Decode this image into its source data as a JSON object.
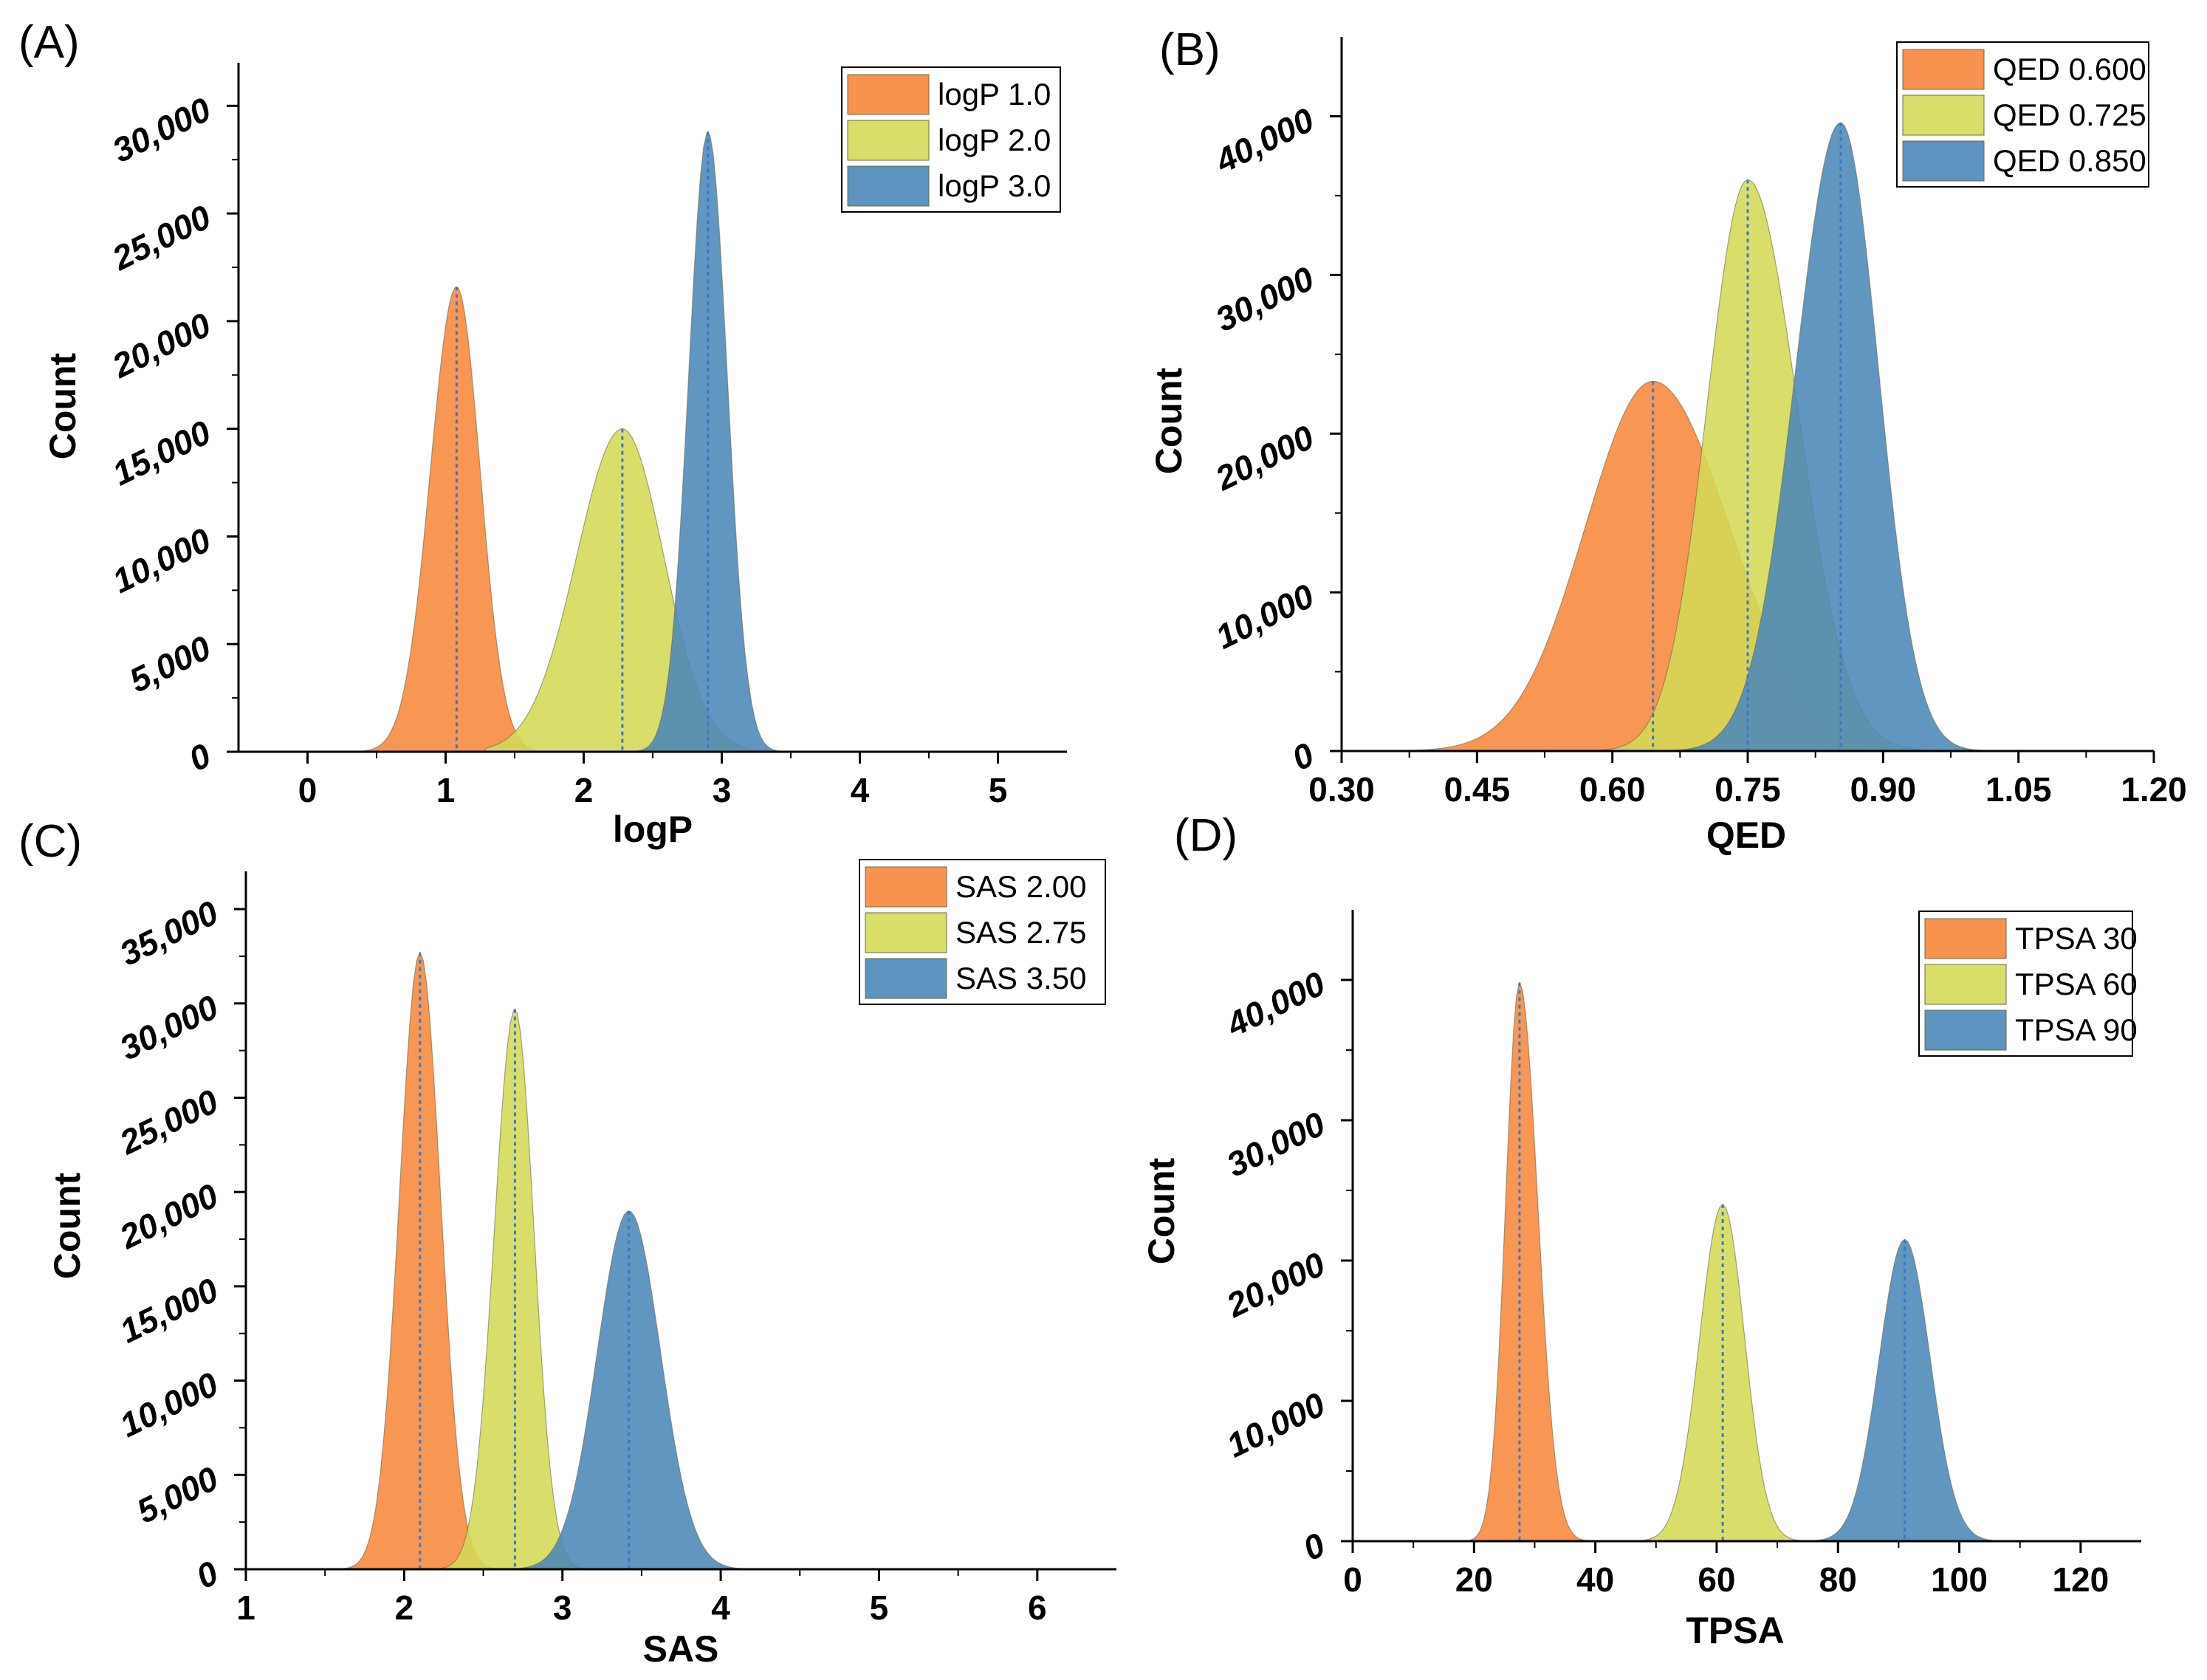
{
  "colors": {
    "orange": "#f7873c",
    "yellow": "#d4da56",
    "blue": "#4b87b8"
  },
  "chart_data": [
    {
      "id": "A",
      "panel_label": "(A)",
      "type": "area",
      "title": "",
      "xlabel": "logP",
      "ylabel": "Count",
      "xlim": [
        -0.5,
        5.5
      ],
      "ylim": [
        0,
        32000
      ],
      "xticks": [
        0,
        1,
        2,
        3,
        4,
        5
      ],
      "xtick_labels": [
        "0",
        "1",
        "2",
        "3",
        "4",
        "5"
      ],
      "yticks": [
        0,
        5000,
        10000,
        15000,
        20000,
        25000,
        30000
      ],
      "ytick_labels": [
        "0",
        "5,000",
        "10,000",
        "15,000",
        "20,000",
        "25,000",
        "30,000"
      ],
      "legend_position": "top-right",
      "series": [
        {
          "name": "logP 1.0",
          "color_key": "orange",
          "peak_x": 1.08,
          "peak_y": 21600,
          "sd_left": 0.19,
          "sd_right": 0.17,
          "x_min": 0.1,
          "x_max": 1.8
        },
        {
          "name": "logP 2.0",
          "color_key": "yellow",
          "peak_x": 2.28,
          "peak_y": 15000,
          "sd_left": 0.33,
          "sd_right": 0.3,
          "x_min": 1.3,
          "x_max": 3.4
        },
        {
          "name": "logP 3.0",
          "color_key": "blue",
          "peak_x": 2.9,
          "peak_y": 28800,
          "sd_left": 0.14,
          "sd_right": 0.14,
          "x_min": 2.3,
          "x_max": 4.1
        }
      ]
    },
    {
      "id": "B",
      "panel_label": "(B)",
      "type": "area",
      "title": "",
      "xlabel": "QED",
      "ylabel": "Count",
      "xlim": [
        0.3,
        1.2
      ],
      "ylim": [
        0,
        45000
      ],
      "xticks": [
        0.3,
        0.45,
        0.6,
        0.75,
        0.9,
        1.05,
        1.2
      ],
      "xtick_labels": [
        "0.30",
        "0.45",
        "0.60",
        "0.75",
        "0.90",
        "1.05",
        "1.20"
      ],
      "yticks": [
        0,
        10000,
        20000,
        30000,
        40000
      ],
      "ytick_labels": [
        "0",
        "10,000",
        "20,000",
        "30,000",
        "40,000"
      ],
      "legend_position": "top-right",
      "series": [
        {
          "name": "QED 0.600",
          "color_key": "orange",
          "peak_x": 0.645,
          "peak_y": 23300,
          "sd_left": 0.075,
          "sd_right": 0.085,
          "x_min": 0.3,
          "x_max": 1.0
        },
        {
          "name": "QED 0.725",
          "color_key": "yellow",
          "peak_x": 0.75,
          "peak_y": 36000,
          "sd_left": 0.045,
          "sd_right": 0.055,
          "x_min": 0.35,
          "x_max": 1.05
        },
        {
          "name": "QED 0.850",
          "color_key": "blue",
          "peak_x": 0.853,
          "peak_y": 39600,
          "sd_left": 0.05,
          "sd_right": 0.042,
          "x_min": 0.5,
          "x_max": 1.1
        }
      ]
    },
    {
      "id": "C",
      "panel_label": "(C)",
      "type": "area",
      "title": "",
      "xlabel": "SAS",
      "ylabel": "Count",
      "xlim": [
        1,
        6.5
      ],
      "ylim": [
        0,
        37000
      ],
      "xticks": [
        1,
        2,
        3,
        4,
        5,
        6
      ],
      "xtick_labels": [
        "1",
        "2",
        "3",
        "4",
        "5",
        "6"
      ],
      "yticks": [
        0,
        5000,
        10000,
        15000,
        20000,
        25000,
        30000,
        35000
      ],
      "ytick_labels": [
        "0",
        "5,000",
        "10,000",
        "15,000",
        "20,000",
        "25,000",
        "30,000",
        "35,000"
      ],
      "legend_position": "top-right",
      "series": [
        {
          "name": "SAS 2.00",
          "color_key": "orange",
          "peak_x": 2.1,
          "peak_y": 32700,
          "sd_left": 0.13,
          "sd_right": 0.13,
          "x_min": 1.6,
          "x_max": 2.7
        },
        {
          "name": "SAS 2.75",
          "color_key": "yellow",
          "peak_x": 2.7,
          "peak_y": 29700,
          "sd_left": 0.13,
          "sd_right": 0.12,
          "x_min": 2.2,
          "x_max": 3.3
        },
        {
          "name": "SAS 3.50",
          "color_key": "blue",
          "peak_x": 3.42,
          "peak_y": 19000,
          "sd_left": 0.2,
          "sd_right": 0.2,
          "x_min": 2.7,
          "x_max": 4.5
        }
      ]
    },
    {
      "id": "D",
      "panel_label": "(D)",
      "type": "area",
      "title": "",
      "xlabel": "TPSA",
      "ylabel": "Count",
      "xlim": [
        0,
        130
      ],
      "ylim": [
        0,
        45000
      ],
      "xticks": [
        0,
        20,
        40,
        60,
        80,
        100,
        120
      ],
      "xtick_labels": [
        "0",
        "20",
        "40",
        "60",
        "80",
        "100",
        "120"
      ],
      "yticks": [
        0,
        10000,
        20000,
        30000,
        40000
      ],
      "ytick_labels": [
        "0",
        "10,000",
        "20,000",
        "30,000",
        "40,000"
      ],
      "legend_position": "top-right",
      "series": [
        {
          "name": "TPSA 30",
          "color_key": "orange",
          "peak_x": 27.5,
          "peak_y": 39800,
          "sd_left": 2.3,
          "sd_right": 3.0,
          "x_min": 15,
          "x_max": 42
        },
        {
          "name": "TPSA 60",
          "color_key": "yellow",
          "peak_x": 61,
          "peak_y": 24000,
          "sd_left": 3.8,
          "sd_right": 3.6,
          "x_min": 46,
          "x_max": 75
        },
        {
          "name": "TPSA 90",
          "color_key": "blue",
          "peak_x": 91,
          "peak_y": 21500,
          "sd_left": 4.2,
          "sd_right": 4.2,
          "x_min": 74,
          "x_max": 108
        }
      ]
    }
  ]
}
